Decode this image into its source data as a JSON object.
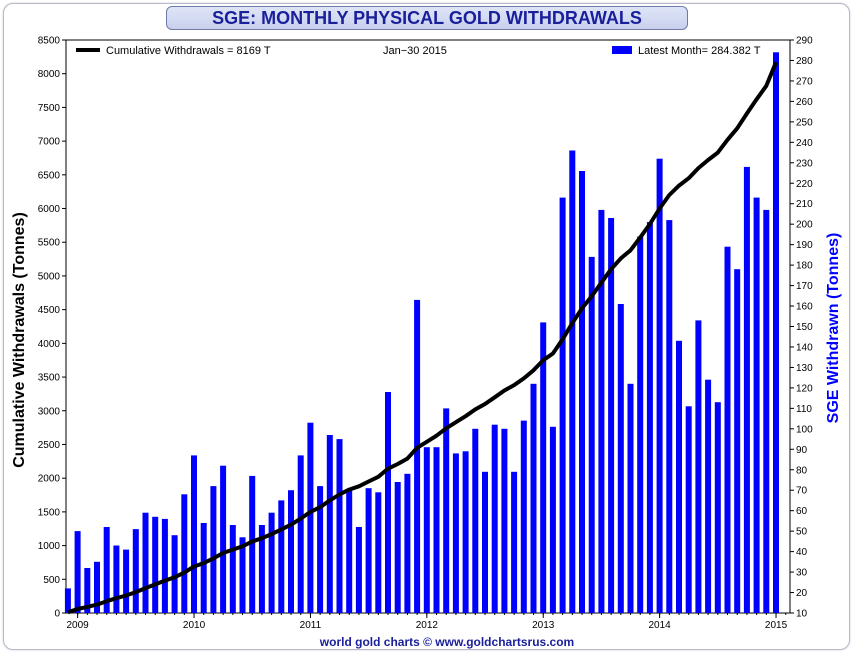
{
  "chart_data": {
    "type": "bar",
    "title": "SGE: MONTHLY PHYSICAL GOLD WITHDRAWALS",
    "legend": {
      "line_label": "Cumulative Withdrawals = 8169 T",
      "date_label": "Jan−30  2015",
      "bar_label": "Latest Month= 284.382 T",
      "placement": "top"
    },
    "ylabel_left": "Cumulative Withdrawals (Tonnes)",
    "ylabel_right": "SGE Withdrawn (Tonnes)",
    "footer": "world gold charts © www.goldchartsrus.com",
    "ylim_left": [
      0,
      8500
    ],
    "ylim_right": [
      10,
      290
    ],
    "yticks_left": [
      "0",
      "500",
      "1000",
      "1500",
      "2000",
      "2500",
      "3000",
      "3500",
      "4000",
      "4500",
      "5000",
      "5500",
      "6000",
      "6500",
      "7000",
      "7500",
      "8000",
      "8500"
    ],
    "yticks_right": [
      "10",
      "20",
      "30",
      "40",
      "50",
      "60",
      "70",
      "80",
      "90",
      "100",
      "110",
      "120",
      "130",
      "140",
      "150",
      "160",
      "170",
      "180",
      "190",
      "200",
      "210",
      "220",
      "230",
      "240",
      "250",
      "260",
      "270",
      "280",
      "290"
    ],
    "xticks": [
      "2009",
      "2010",
      "2011",
      "2012",
      "2013",
      "2014",
      "2015"
    ],
    "grid": false,
    "colors": {
      "bars": "#0000ff",
      "line": "#000000",
      "title_text": "#1a1f9a",
      "right_axis_title": "#0000ff"
    },
    "months": [
      "2008-12",
      "2009-01",
      "2009-02",
      "2009-03",
      "2009-04",
      "2009-05",
      "2009-06",
      "2009-07",
      "2009-08",
      "2009-09",
      "2009-10",
      "2009-11",
      "2009-12",
      "2010-01",
      "2010-02",
      "2010-03",
      "2010-04",
      "2010-05",
      "2010-06",
      "2010-07",
      "2010-08",
      "2010-09",
      "2010-10",
      "2010-11",
      "2010-12",
      "2011-01",
      "2011-02",
      "2011-03",
      "2011-04",
      "2011-05",
      "2011-06",
      "2011-07",
      "2011-08",
      "2011-09",
      "2011-10",
      "2011-11",
      "2011-12",
      "2012-01",
      "2012-02",
      "2012-03",
      "2012-04",
      "2012-05",
      "2012-06",
      "2012-07",
      "2012-08",
      "2012-09",
      "2012-10",
      "2012-11",
      "2012-12",
      "2013-01",
      "2013-02",
      "2013-03",
      "2013-04",
      "2013-05",
      "2013-06",
      "2013-07",
      "2013-08",
      "2013-09",
      "2013-10",
      "2013-11",
      "2013-12",
      "2014-01",
      "2014-02",
      "2014-03",
      "2014-04",
      "2014-05",
      "2014-06",
      "2014-07",
      "2014-08",
      "2014-09",
      "2014-10",
      "2014-11",
      "2014-12",
      "2015-01"
    ],
    "series": [
      {
        "name": "Latest Month",
        "axis": "right",
        "values": [
          22,
          50,
          32,
          35,
          52,
          43,
          41,
          51,
          59,
          57,
          56,
          48,
          68,
          87,
          54,
          72,
          82,
          53,
          47,
          77,
          53,
          59,
          65,
          70,
          87,
          103,
          72,
          97,
          95,
          70,
          52,
          71,
          69,
          118,
          74,
          78,
          163,
          91,
          91,
          110,
          88,
          89,
          100,
          79,
          102,
          100,
          79,
          104,
          122,
          152,
          101,
          213,
          236,
          226,
          184,
          207,
          203,
          161,
          122,
          194,
          201,
          232,
          202,
          143,
          111,
          153,
          124,
          113,
          189,
          178,
          228,
          213,
          207,
          284
        ]
      },
      {
        "name": "Cumulative Withdrawals",
        "axis": "left",
        "values": [
          10,
          60,
          90,
          125,
          175,
          220,
          260,
          310,
          370,
          425,
          480,
          530,
          600,
          690,
          740,
          810,
          890,
          940,
          990,
          1060,
          1110,
          1170,
          1240,
          1310,
          1400,
          1500,
          1570,
          1670,
          1760,
          1830,
          1880,
          1950,
          2020,
          2140,
          2210,
          2290,
          2450,
          2540,
          2630,
          2740,
          2830,
          2920,
          3020,
          3100,
          3200,
          3300,
          3380,
          3480,
          3600,
          3750,
          3850,
          4060,
          4300,
          4520,
          4700,
          4900,
          5100,
          5260,
          5380,
          5570,
          5770,
          6000,
          6200,
          6340,
          6450,
          6600,
          6720,
          6830,
          7020,
          7190,
          7410,
          7620,
          7820,
          8169
        ]
      }
    ]
  }
}
